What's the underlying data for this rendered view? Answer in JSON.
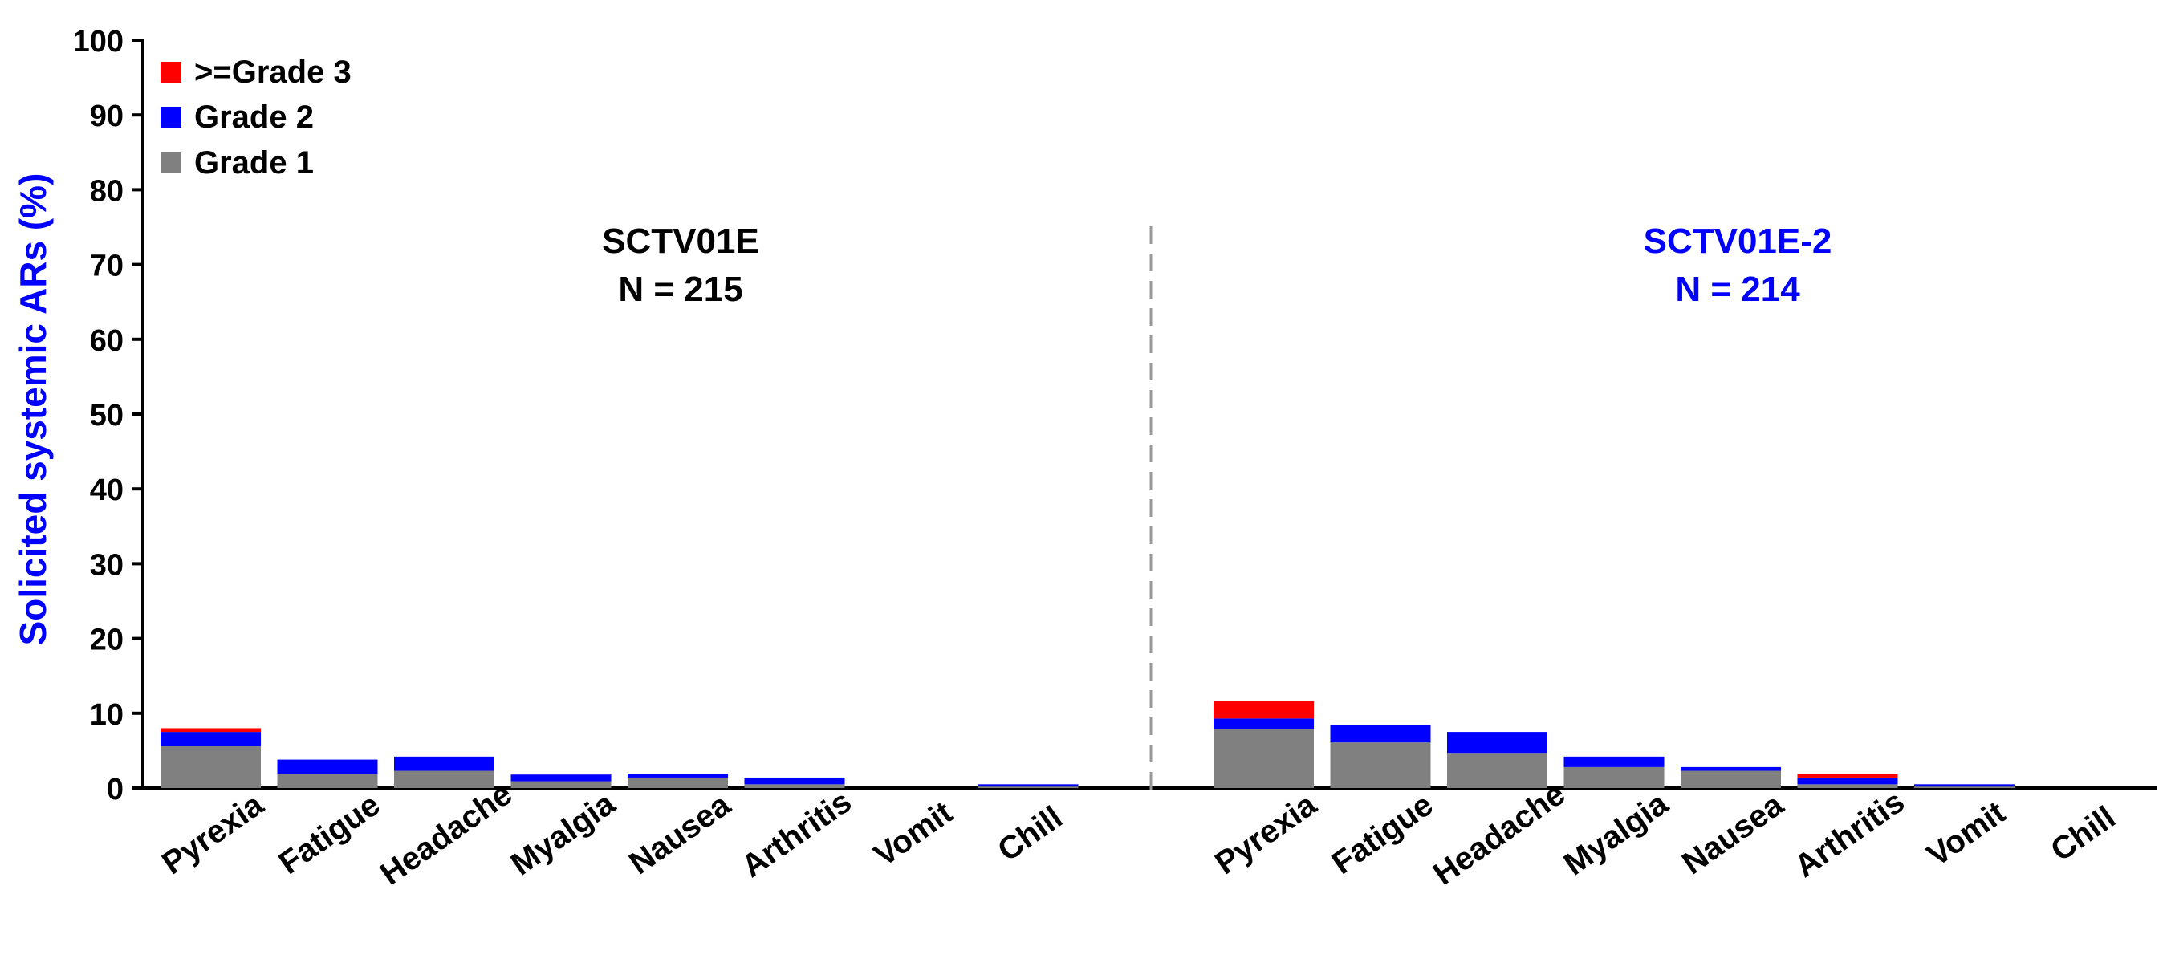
{
  "chart_data": {
    "type": "bar",
    "stacked": true,
    "ylabel": "Solicited systemic ARs (%)",
    "ylim": [
      0,
      100
    ],
    "yticks": [
      0,
      10,
      20,
      30,
      40,
      50,
      60,
      70,
      80,
      90,
      100
    ],
    "categories": [
      "Pyrexia",
      "Fatigue",
      "Headache",
      "Myalgia",
      "Nausea",
      "Arthritis",
      "Vomit",
      "Chill"
    ],
    "legend": {
      "position": "top-left",
      "entries": [
        ">=Grade 3",
        "Grade 2",
        "Grade 1"
      ]
    },
    "series_colors": {
      "grade1": "#808080",
      "grade2": "#0000ff",
      "grade3": "#ff0000"
    },
    "groups": [
      {
        "name": "SCTV01E",
        "n_label": "N = 215",
        "color": "#000000",
        "series": [
          {
            "name": "Grade 1",
            "values": [
              5.6,
              1.9,
              2.3,
              0.9,
              1.4,
              0.5,
              0,
              0.2
            ]
          },
          {
            "name": "Grade 2",
            "values": [
              1.9,
              1.9,
              1.9,
              0.9,
              0.5,
              0.9,
              0,
              0.3
            ]
          },
          {
            "name": ">=Grade 3",
            "values": [
              0.5,
              0,
              0,
              0,
              0,
              0,
              0,
              0
            ]
          }
        ]
      },
      {
        "name": "SCTV01E-2",
        "n_label": "N = 214",
        "color": "#0000ff",
        "series": [
          {
            "name": "Grade 1",
            "values": [
              7.9,
              6.1,
              4.7,
              2.8,
              2.3,
              0.5,
              0.2,
              0
            ]
          },
          {
            "name": "Grade 2",
            "values": [
              1.4,
              2.3,
              2.8,
              1.4,
              0.5,
              0.9,
              0.3,
              0
            ]
          },
          {
            "name": ">=Grade 3",
            "values": [
              2.3,
              0,
              0,
              0,
              0,
              0.5,
              0,
              0
            ]
          }
        ]
      }
    ]
  }
}
